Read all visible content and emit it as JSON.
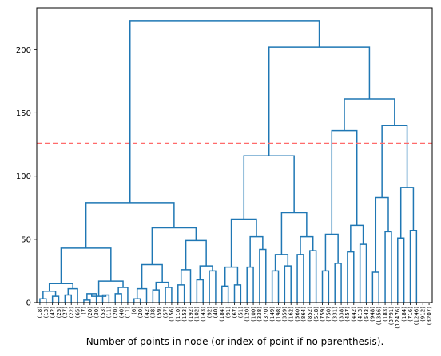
{
  "chart_data": {
    "type": "dendrogram",
    "title": "",
    "xlabel": "Number of points in node (or index of point if no parenthesis).",
    "ylabel": "",
    "ylim": [
      0,
      233
    ],
    "y_ticks": [
      0,
      50,
      100,
      150,
      200
    ],
    "grid": false,
    "link_color": "#1f77b4",
    "threshold": {
      "value": 126,
      "color": "#ff6b6b",
      "style": "dashed"
    },
    "leaves": [
      "(18)",
      "(13)",
      "(42)",
      "(25)",
      "(27)",
      "(22)",
      "(65)",
      "(7)",
      "(20)",
      "(30)",
      "(53)",
      "(11)",
      "(20)",
      "(40)",
      "(11)",
      "(6)",
      "(20)",
      "(42)",
      "(38)",
      "(59)",
      "(57)",
      "(156)",
      "(110)",
      "(153)",
      "(192)",
      "(102)",
      "(143)",
      "(92)",
      "(40)",
      "(184)",
      "(91)",
      "(67)",
      "(51)",
      "(120)",
      "(100)",
      "(338)",
      "(370)",
      "(149)",
      "(198)",
      "(359)",
      "(162)",
      "(560)",
      "(864)",
      "(852)",
      "(518)",
      "(759)",
      "(750)",
      "(331)",
      "(338)",
      "(457)",
      "(442)",
      "(413)",
      "(543)",
      "(948)",
      "(1356)",
      "(183)",
      "(3791)",
      "(12476)",
      "(184)",
      "(716)",
      "(1246)",
      "(912)",
      "(3207)"
    ],
    "merges": [
      {
        "a": 0,
        "b": 1,
        "h": 3
      },
      {
        "a": 2,
        "b": 3,
        "h": 5
      },
      {
        "a": "m0",
        "b": "m1",
        "h": 9
      },
      {
        "a": 4,
        "b": 5,
        "h": 6
      },
      {
        "a": "m3",
        "b": 6,
        "h": 11
      },
      {
        "a": "m2",
        "b": "m4",
        "h": 15
      },
      {
        "a": 7,
        "b": 8,
        "h": 2
      },
      {
        "a": "m6",
        "b": 9,
        "h": 7
      },
      {
        "a": 10,
        "b": 11,
        "h": 6
      },
      {
        "a": "m7",
        "b": "m8",
        "h": 5
      },
      {
        "a": 12,
        "b": 13,
        "h": 7
      },
      {
        "a": 14,
        "b": "m10",
        "h": 12
      },
      {
        "a": "m9",
        "b": "m11",
        "h": 17
      },
      {
        "a": "m5",
        "b": "m12",
        "h": 43
      },
      {
        "a": 15,
        "b": 16,
        "h": 3
      },
      {
        "a": "m14",
        "b": 17,
        "h": 11
      },
      {
        "a": 18,
        "b": 19,
        "h": 10
      },
      {
        "a": 20,
        "b": 21,
        "h": 12
      },
      {
        "a": "m16",
        "b": "m17",
        "h": 16
      },
      {
        "a": "m15",
        "b": "m18",
        "h": 30
      },
      {
        "a": 22,
        "b": 23,
        "h": 14
      },
      {
        "a": "m20",
        "b": 24,
        "h": 26
      },
      {
        "a": 25,
        "b": 26,
        "h": 18
      },
      {
        "a": 27,
        "b": 28,
        "h": 25
      },
      {
        "a": "m22",
        "b": "m23",
        "h": 29
      },
      {
        "a": "m21",
        "b": "m24",
        "h": 49
      },
      {
        "a": "m19",
        "b": "m25",
        "h": 59
      },
      {
        "a": "m13",
        "b": "m26",
        "h": 79
      },
      {
        "a": 29,
        "b": 30,
        "h": 13
      },
      {
        "a": 31,
        "b": 32,
        "h": 14
      },
      {
        "a": "m28",
        "b": "m29",
        "h": 28
      },
      {
        "a": 33,
        "b": 34,
        "h": 28
      },
      {
        "a": 35,
        "b": 36,
        "h": 42
      },
      {
        "a": "m31",
        "b": "m32",
        "h": 52
      },
      {
        "a": "m30",
        "b": "m33",
        "h": 66
      },
      {
        "a": 37,
        "b": 38,
        "h": 25
      },
      {
        "a": 39,
        "b": 40,
        "h": 29
      },
      {
        "a": "m35",
        "b": "m36",
        "h": 38
      },
      {
        "a": 41,
        "b": 42,
        "h": 38
      },
      {
        "a": 43,
        "b": 44,
        "h": 41
      },
      {
        "a": "m38",
        "b": "m39",
        "h": 52
      },
      {
        "a": "m37",
        "b": "m40",
        "h": 71
      },
      {
        "a": "m34",
        "b": "m41",
        "h": 116
      },
      {
        "a": 45,
        "b": 46,
        "h": 25
      },
      {
        "a": 47,
        "b": 48,
        "h": 31
      },
      {
        "a": "m43",
        "b": "m44",
        "h": 54
      },
      {
        "a": 49,
        "b": 50,
        "h": 40
      },
      {
        "a": 51,
        "b": 52,
        "h": 46
      },
      {
        "a": "m46",
        "b": "m47",
        "h": 61
      },
      {
        "a": "m45",
        "b": "m48",
        "h": 136
      },
      {
        "a": 53,
        "b": 54,
        "h": 24
      },
      {
        "a": 55,
        "b": 56,
        "h": 56
      },
      {
        "a": "m50",
        "b": "m51",
        "h": 83
      },
      {
        "a": 57,
        "b": 58,
        "h": 51
      },
      {
        "a": 59,
        "b": 60,
        "h": 57
      },
      {
        "a": "m53",
        "b": "m54",
        "h": 91
      },
      {
        "a": "m52",
        "b": "m55",
        "h": 140
      },
      {
        "a": "m49",
        "b": "m56",
        "h": 161
      },
      {
        "a": "m42",
        "b": "m57",
        "h": 202
      },
      {
        "a": "m27",
        "b": "m58",
        "h": 223
      }
    ]
  }
}
